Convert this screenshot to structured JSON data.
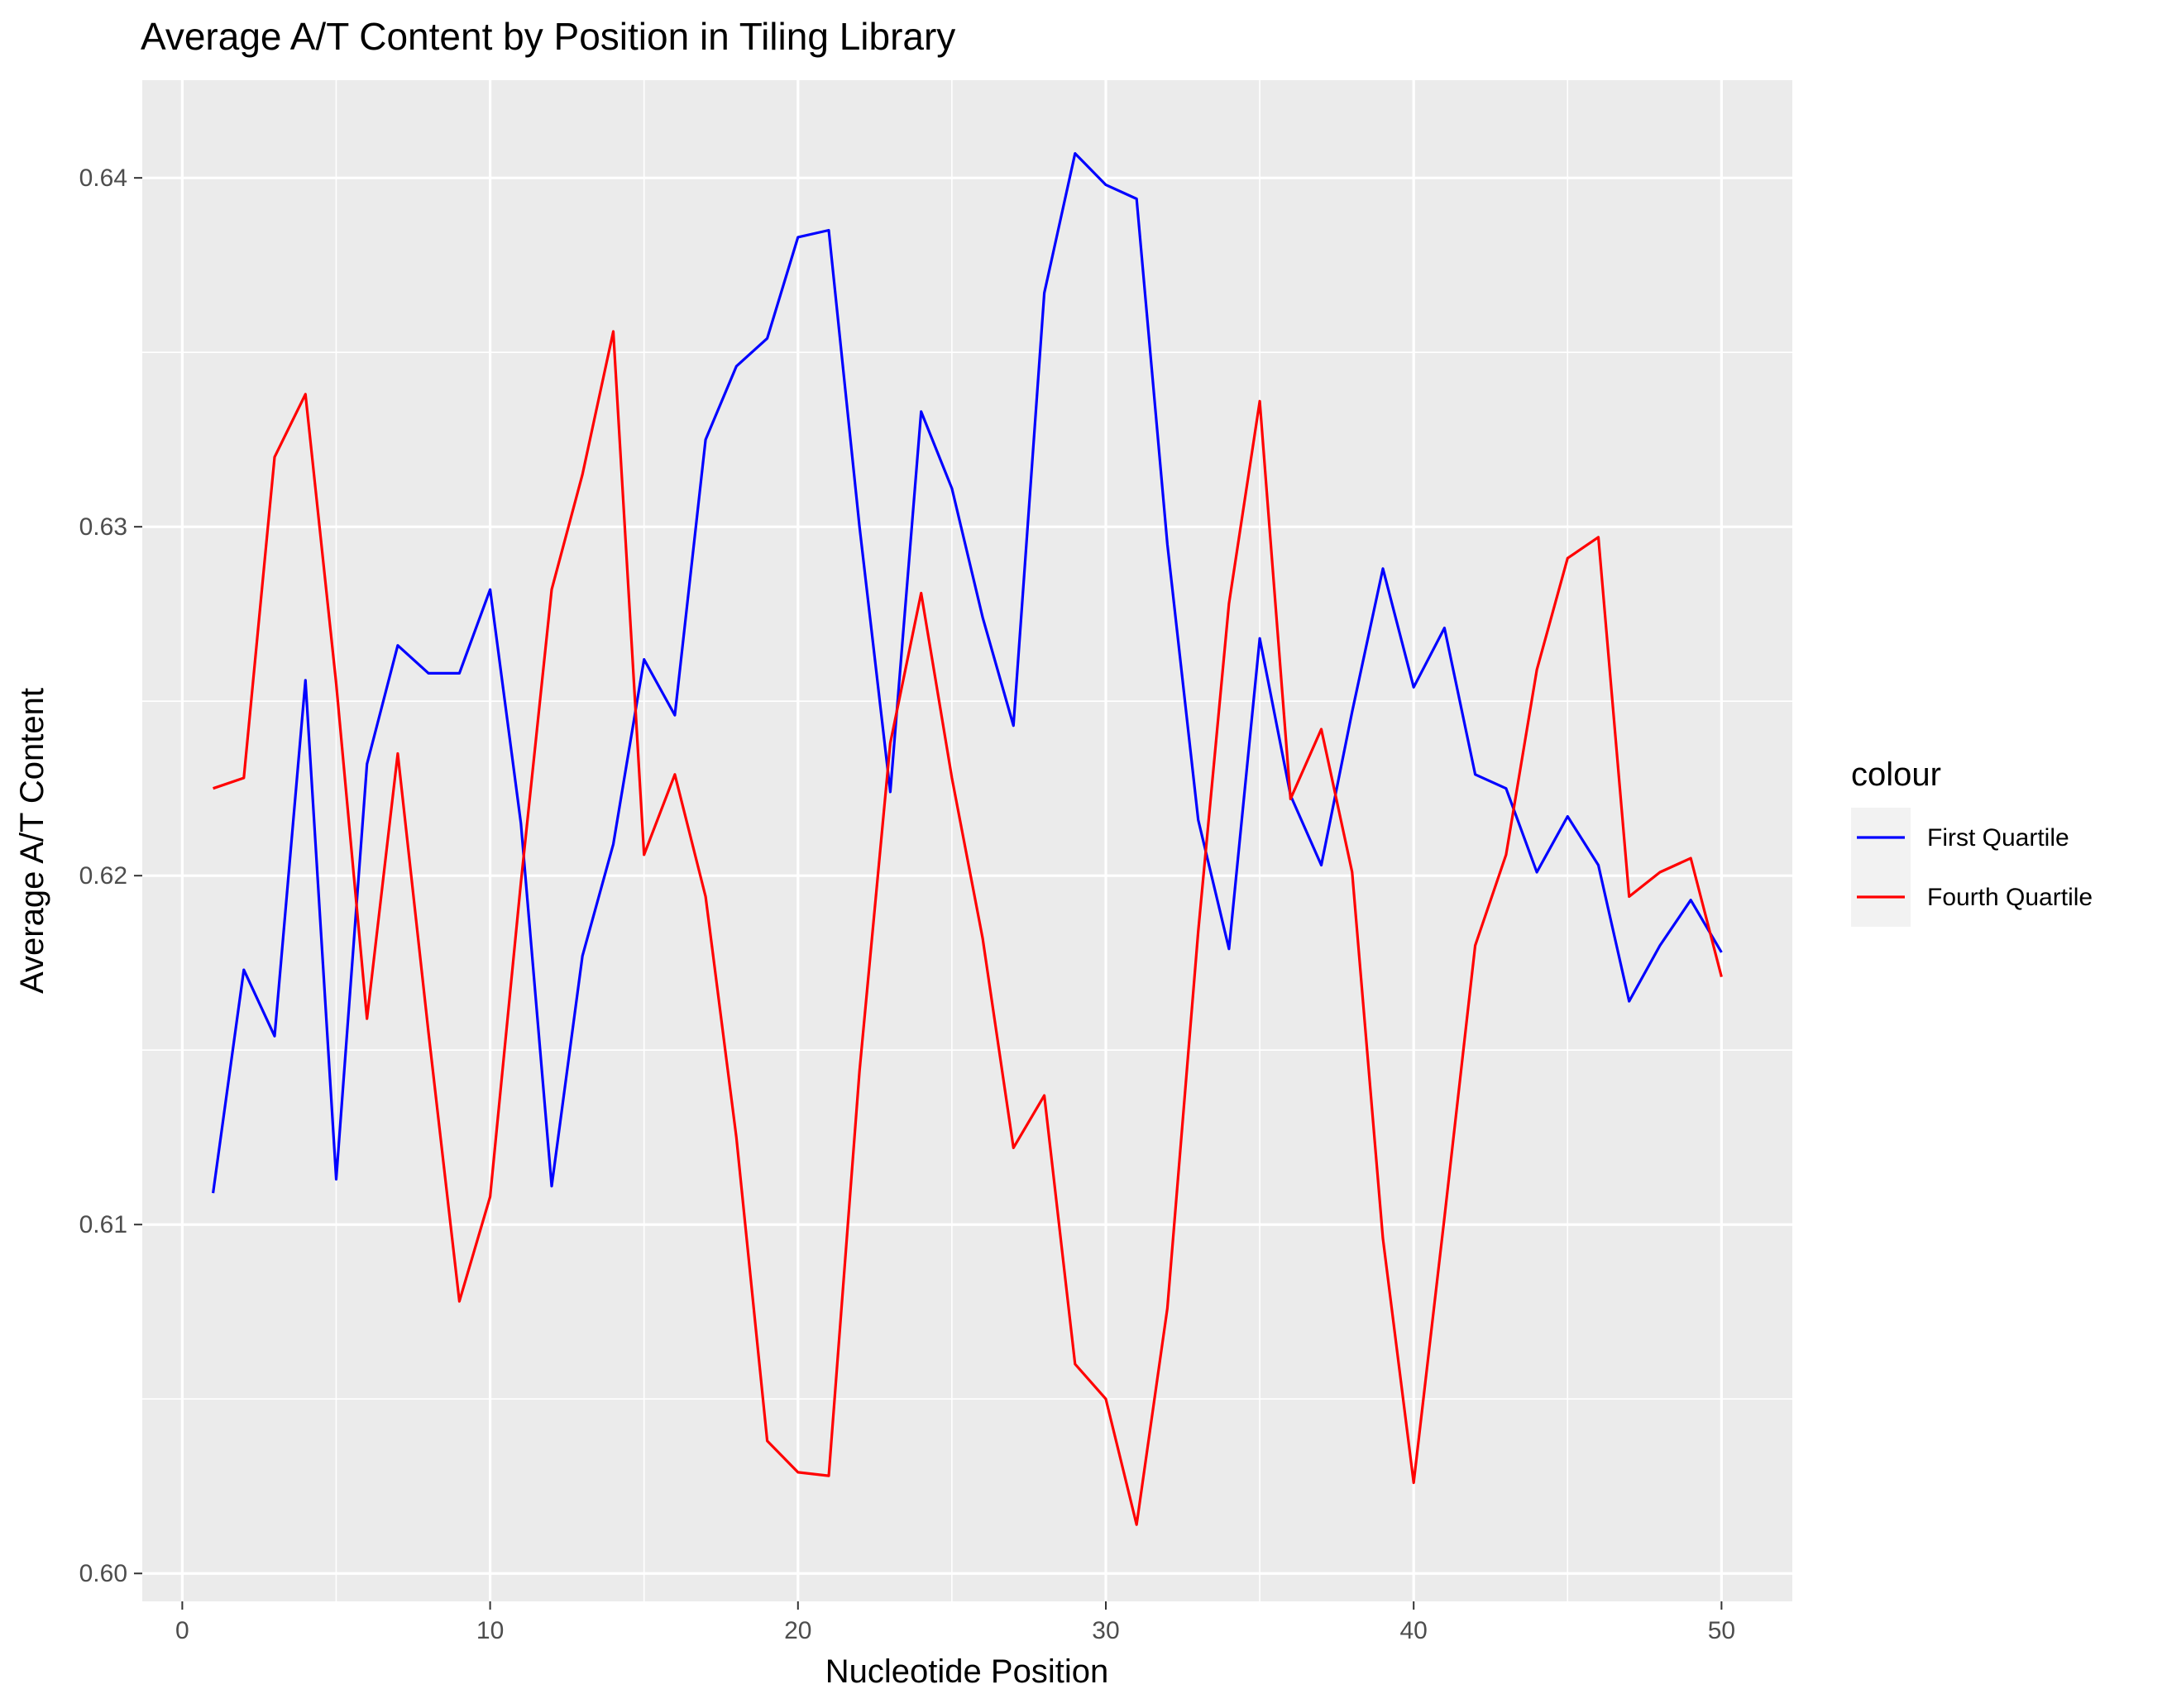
{
  "chart_data": {
    "type": "line",
    "title": "Average A/T Content by Position in Tiling Library",
    "xlabel": "Nucleotide Position",
    "ylabel": "Average A/T Content",
    "xlim": [
      -1.3,
      52.3
    ],
    "ylim": [
      0.5992,
      0.6428
    ],
    "x_ticks": [
      0,
      10,
      20,
      30,
      40,
      50
    ],
    "y_ticks": [
      0.6,
      0.61,
      0.62,
      0.63,
      0.64
    ],
    "y_tick_labels": [
      "0.60",
      "0.61",
      "0.62",
      "0.63",
      "0.64"
    ],
    "grid": true,
    "legend": {
      "title": "colour",
      "position": "right"
    },
    "x": [
      1,
      2,
      3,
      4,
      5,
      6,
      7,
      8,
      9,
      10,
      11,
      12,
      13,
      14,
      15,
      16,
      17,
      18,
      19,
      20,
      21,
      22,
      23,
      24,
      25,
      26,
      27,
      28,
      29,
      30,
      31,
      32,
      33,
      34,
      35,
      36,
      37,
      38,
      39,
      40,
      41,
      42,
      43,
      44,
      45,
      46,
      47,
      48,
      49,
      50
    ],
    "series": [
      {
        "name": "First Quartile",
        "color": "#0000ff",
        "values": [
          0.6109,
          0.6173,
          0.6154,
          0.6256,
          0.6113,
          0.6232,
          0.6266,
          0.6258,
          0.6258,
          0.6282,
          0.6215,
          0.6111,
          0.6177,
          0.6209,
          0.6262,
          0.6246,
          0.6325,
          0.6346,
          0.6354,
          0.6383,
          0.6385,
          0.63,
          0.6224,
          0.6333,
          0.6311,
          0.6274,
          0.6243,
          0.6367,
          0.6407,
          0.6398,
          0.6394,
          0.6295,
          0.6216,
          0.6179,
          0.6268,
          0.6223,
          0.6203,
          0.6247,
          0.6288,
          0.6254,
          0.6271,
          0.6229,
          0.6225,
          0.6201,
          0.6217,
          0.6203,
          0.6164,
          0.618,
          0.6193,
          0.6178
        ]
      },
      {
        "name": "Fourth Quartile",
        "color": "#ff0000",
        "values": [
          0.6225,
          0.6228,
          0.632,
          0.6338,
          0.6255,
          0.6159,
          0.6235,
          0.6155,
          0.6078,
          0.6108,
          0.6198,
          0.6282,
          0.6315,
          0.6356,
          0.6206,
          0.6229,
          0.6194,
          0.6125,
          0.6038,
          0.6029,
          0.6028,
          0.6144,
          0.6238,
          0.6281,
          0.6228,
          0.6182,
          0.6122,
          0.6137,
          0.606,
          0.605,
          0.6014,
          0.6076,
          0.6184,
          0.6278,
          0.6336,
          0.6222,
          0.6242,
          0.6201,
          0.6096,
          0.6026,
          0.6102,
          0.618,
          0.6206,
          0.6259,
          0.6291,
          0.6297,
          0.6194,
          0.6201,
          0.6205,
          0.6171
        ]
      }
    ]
  }
}
